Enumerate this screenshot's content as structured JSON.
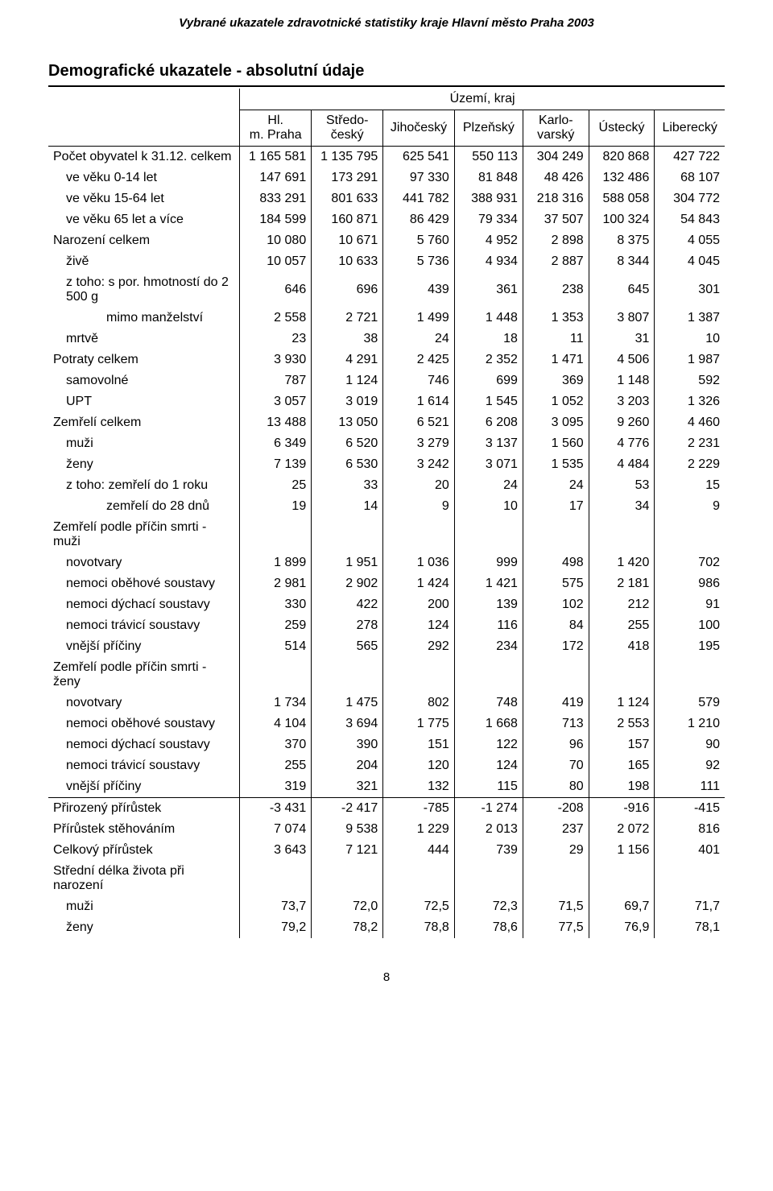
{
  "running_head": "Vybrané ukazatele zdravotnické statistiky kraje Hlavní město Praha 2003",
  "title": "Demografické ukazatele - absolutní údaje",
  "section_header": "Území, kraj",
  "columns": [
    "Hl. m. Praha",
    "Středo-český",
    "Jihočeský",
    "Plzeňský",
    "Karlo-varský",
    "Ústecký",
    "Liberecký"
  ],
  "page_number": "8",
  "rows": [
    {
      "label": "Počet obyvatel k 31.12. celkem",
      "indent": 0,
      "vals": [
        "1 165 581",
        "1 135 795",
        "625 541",
        "550 113",
        "304 249",
        "820 868",
        "427 722"
      ]
    },
    {
      "label": "ve věku 0-14 let",
      "indent": 1,
      "vals": [
        "147 691",
        "173 291",
        "97 330",
        "81 848",
        "48 426",
        "132 486",
        "68 107"
      ]
    },
    {
      "label": "ve věku 15-64 let",
      "indent": 1,
      "vals": [
        "833 291",
        "801 633",
        "441 782",
        "388 931",
        "218 316",
        "588 058",
        "304 772"
      ]
    },
    {
      "label": "ve věku 65 let a více",
      "indent": 1,
      "vals": [
        "184 599",
        "160 871",
        "86 429",
        "79 334",
        "37 507",
        "100 324",
        "54 843"
      ]
    },
    {
      "label": "Narození celkem",
      "indent": 0,
      "vals": [
        "10 080",
        "10 671",
        "5 760",
        "4 952",
        "2 898",
        "8 375",
        "4 055"
      ]
    },
    {
      "label": "živě",
      "indent": 1,
      "vals": [
        "10 057",
        "10 633",
        "5 736",
        "4 934",
        "2 887",
        "8 344",
        "4 045"
      ]
    },
    {
      "label": "z toho: s por. hmotností do 2 500 g",
      "indent": 1,
      "vals": [
        "646",
        "696",
        "439",
        "361",
        "238",
        "645",
        "301"
      ]
    },
    {
      "label": "mimo manželství",
      "indent": 3,
      "vals": [
        "2 558",
        "2 721",
        "1 499",
        "1 448",
        "1 353",
        "3 807",
        "1 387"
      ]
    },
    {
      "label": "mrtvě",
      "indent": 1,
      "vals": [
        "23",
        "38",
        "24",
        "18",
        "11",
        "31",
        "10"
      ]
    },
    {
      "label": "Potraty celkem",
      "indent": 0,
      "vals": [
        "3 930",
        "4 291",
        "2 425",
        "2 352",
        "1 471",
        "4 506",
        "1 987"
      ]
    },
    {
      "label": "samovolné",
      "indent": 1,
      "vals": [
        "787",
        "1 124",
        "746",
        "699",
        "369",
        "1 148",
        "592"
      ]
    },
    {
      "label": "UPT",
      "indent": 1,
      "vals": [
        "3 057",
        "3 019",
        "1 614",
        "1 545",
        "1 052",
        "3 203",
        "1 326"
      ]
    },
    {
      "label": "Zemřelí celkem",
      "indent": 0,
      "vals": [
        "13 488",
        "13 050",
        "6 521",
        "6 208",
        "3 095",
        "9 260",
        "4 460"
      ]
    },
    {
      "label": "muži",
      "indent": 1,
      "vals": [
        "6 349",
        "6 520",
        "3 279",
        "3 137",
        "1 560",
        "4 776",
        "2 231"
      ]
    },
    {
      "label": "ženy",
      "indent": 1,
      "vals": [
        "7 139",
        "6 530",
        "3 242",
        "3 071",
        "1 535",
        "4 484",
        "2 229"
      ]
    },
    {
      "label": "z toho: zemřelí do 1 roku",
      "indent": 1,
      "vals": [
        "25",
        "33",
        "20",
        "24",
        "24",
        "53",
        "15"
      ]
    },
    {
      "label": "zemřelí do 28 dnů",
      "indent": 3,
      "vals": [
        "19",
        "14",
        "9",
        "10",
        "17",
        "34",
        "9"
      ]
    },
    {
      "label": "Zemřelí podle příčin smrti - muži",
      "indent": 0,
      "vals": [
        "",
        "",
        "",
        "",
        "",
        "",
        ""
      ]
    },
    {
      "label": "novotvary",
      "indent": 1,
      "vals": [
        "1 899",
        "1 951",
        "1 036",
        "999",
        "498",
        "1 420",
        "702"
      ]
    },
    {
      "label": "nemoci oběhové soustavy",
      "indent": 1,
      "vals": [
        "2 981",
        "2 902",
        "1 424",
        "1 421",
        "575",
        "2 181",
        "986"
      ]
    },
    {
      "label": "nemoci dýchací soustavy",
      "indent": 1,
      "vals": [
        "330",
        "422",
        "200",
        "139",
        "102",
        "212",
        "91"
      ]
    },
    {
      "label": "nemoci trávicí soustavy",
      "indent": 1,
      "vals": [
        "259",
        "278",
        "124",
        "116",
        "84",
        "255",
        "100"
      ]
    },
    {
      "label": "vnější příčiny",
      "indent": 1,
      "vals": [
        "514",
        "565",
        "292",
        "234",
        "172",
        "418",
        "195"
      ]
    },
    {
      "label": "Zemřelí podle příčin smrti - ženy",
      "indent": 0,
      "vals": [
        "",
        "",
        "",
        "",
        "",
        "",
        ""
      ]
    },
    {
      "label": "novotvary",
      "indent": 1,
      "vals": [
        "1 734",
        "1 475",
        "802",
        "748",
        "419",
        "1 124",
        "579"
      ]
    },
    {
      "label": "nemoci oběhové soustavy",
      "indent": 1,
      "vals": [
        "4 104",
        "3 694",
        "1 775",
        "1 668",
        "713",
        "2 553",
        "1 210"
      ]
    },
    {
      "label": "nemoci dýchací soustavy",
      "indent": 1,
      "vals": [
        "370",
        "390",
        "151",
        "122",
        "96",
        "157",
        "90"
      ]
    },
    {
      "label": "nemoci trávicí soustavy",
      "indent": 1,
      "vals": [
        "255",
        "204",
        "120",
        "124",
        "70",
        "165",
        "92"
      ]
    },
    {
      "label": "vnější příčiny",
      "indent": 1,
      "vals": [
        "319",
        "321",
        "132",
        "115",
        "80",
        "198",
        "111"
      ],
      "rule_below": true
    },
    {
      "label": "Přirozený přírůstek",
      "indent": 0,
      "vals": [
        "-3 431",
        "-2 417",
        "-785",
        "-1 274",
        "-208",
        "-916",
        "-415"
      ]
    },
    {
      "label": "Přírůstek stěhováním",
      "indent": 0,
      "vals": [
        "7 074",
        "9 538",
        "1 229",
        "2 013",
        "237",
        "2 072",
        "816"
      ]
    },
    {
      "label": "Celkový přírůstek",
      "indent": 0,
      "vals": [
        "3 643",
        "7 121",
        "444",
        "739",
        "29",
        "1 156",
        "401"
      ]
    },
    {
      "label": "Střední délka života při narození",
      "indent": 0,
      "vals": [
        "",
        "",
        "",
        "",
        "",
        "",
        ""
      ]
    },
    {
      "label": "muži",
      "indent": 1,
      "vals": [
        "73,7",
        "72,0",
        "72,5",
        "72,3",
        "71,5",
        "69,7",
        "71,7"
      ]
    },
    {
      "label": "ženy",
      "indent": 1,
      "vals": [
        "79,2",
        "78,2",
        "78,8",
        "78,6",
        "77,5",
        "76,9",
        "78,1"
      ]
    }
  ]
}
